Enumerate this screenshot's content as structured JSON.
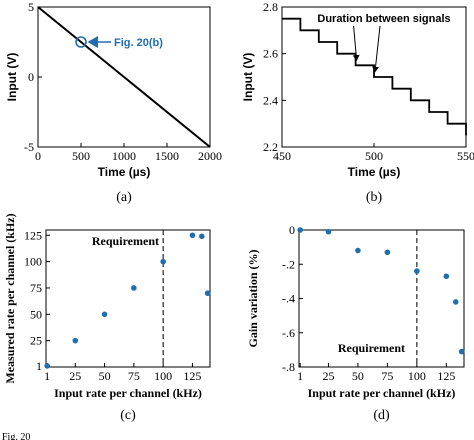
{
  "chart_data": [
    {
      "panel": "a",
      "type": "line",
      "caption": "(a)",
      "xlabel": "Time (µs)",
      "ylabel": "Input (V)",
      "xlim": [
        0,
        2000
      ],
      "ylim": [
        -5,
        5
      ],
      "xticks": [
        0,
        500,
        1000,
        1500,
        2000
      ],
      "yticks": [
        -5,
        0,
        5
      ],
      "series": [
        {
          "x": [
            0,
            2000
          ],
          "y": [
            5,
            -5
          ],
          "color": "#000000"
        }
      ],
      "marker": {
        "x": 500,
        "y": 2.5
      },
      "annotation": {
        "text": "Fig. 20(b)",
        "color": "#1f6fb0"
      }
    },
    {
      "panel": "b",
      "type": "line",
      "caption": "(b)",
      "xlabel": "Time (µs)",
      "ylabel": "Input (V)",
      "xlim": [
        450,
        550
      ],
      "ylim": [
        2.2,
        2.8
      ],
      "xticks": [
        450,
        500,
        550
      ],
      "yticks": [
        2.2,
        2.4,
        2.6,
        2.8
      ],
      "step_start_x": 450,
      "step_width": 10,
      "levels": [
        2.75,
        2.7,
        2.65,
        2.6,
        2.55,
        2.5,
        2.45,
        2.4,
        2.35,
        2.3,
        2.25
      ],
      "annotation": {
        "text": "Duration between signals",
        "arrow_x": [
          490,
          500
        ]
      }
    },
    {
      "panel": "c",
      "type": "scatter",
      "caption": "(c)",
      "xlabel": "Input rate per channel (kHz)",
      "ylabel": "Measured rate per channel (kHz)",
      "xlim": [
        0,
        140
      ],
      "ylim": [
        0,
        130
      ],
      "xticks": [
        1,
        25,
        50,
        75,
        100,
        125
      ],
      "yticks": [
        1,
        25,
        50,
        75,
        100,
        125
      ],
      "points": {
        "x": [
          1,
          25,
          50,
          75,
          100,
          125,
          133,
          138
        ],
        "y": [
          1,
          25,
          50,
          75,
          100,
          125,
          124,
          70
        ]
      },
      "requirement": {
        "x": 100,
        "label": "Requirement"
      }
    },
    {
      "panel": "d",
      "type": "scatter",
      "caption": "(d)",
      "xlabel": "Input rate per channel (kHz)",
      "ylabel": "Gain variation (%)",
      "xlim": [
        0,
        140
      ],
      "ylim": [
        -0.8,
        0
      ],
      "xticks": [
        1,
        25,
        50,
        75,
        100,
        125
      ],
      "yticks": [
        0,
        -0.2,
        -0.4,
        -0.6,
        -0.8
      ],
      "points": {
        "x": [
          1,
          25,
          50,
          75,
          100,
          125,
          133,
          138
        ],
        "y": [
          0.0,
          -0.01,
          -0.12,
          -0.13,
          -0.24,
          -0.27,
          -0.42,
          -0.71
        ]
      },
      "requirement": {
        "x": 100,
        "label": "Requirement"
      }
    }
  ],
  "footer": {
    "text": "Fig. 20"
  },
  "colors": {
    "point": "#1f6fb0",
    "line": "#000000"
  }
}
